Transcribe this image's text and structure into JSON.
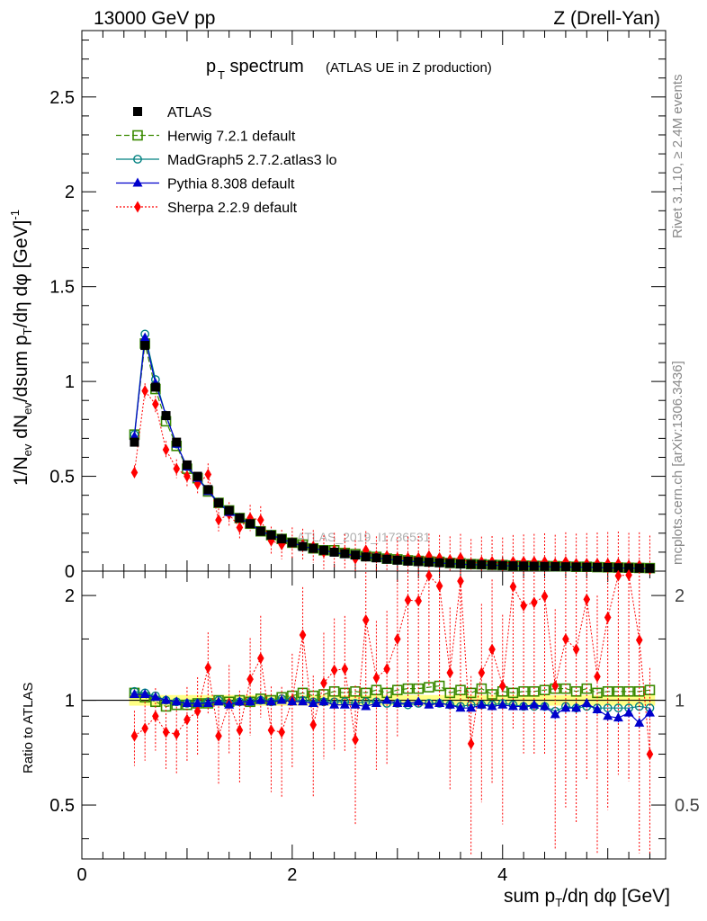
{
  "header": {
    "left": "13000 GeV pp",
    "right": "Z (Drell-Yan)"
  },
  "title": {
    "main": "p",
    "sub": "T",
    "rest": " spectrum",
    "small": "(ATLAS UE in Z production)"
  },
  "side_labels": {
    "rivet": "Rivet 3.1.10, ≥ 2.4M events",
    "mcplots": "mcplots.cern.ch [arXiv:1306.3436]"
  },
  "watermark": "ATLAS_2019_I1736531",
  "axes": {
    "ylabel_top": "1/N_ev dN_ev/dsum p_T/dη dφ [GeV]^-1",
    "ylabel_bottom": "Ratio to ATLAS",
    "xlabel": "sum p_T/dη dφ [GeV]"
  },
  "colors": {
    "atlas": "#000000",
    "herwig": "#3a8a00",
    "madgraph": "#008080",
    "pythia": "#0000cc",
    "sherpa": "#ff0000",
    "band": "#ffff66"
  },
  "chart_data": [
    {
      "type": "line",
      "panel": "main",
      "xlim": [
        0,
        5.55
      ],
      "ylim": [
        0,
        2.85
      ],
      "xticks": [
        0,
        2,
        4
      ],
      "yticks": [
        0,
        0.5,
        1,
        1.5,
        2,
        2.5
      ],
      "x": [
        0.5,
        0.6,
        0.7,
        0.8,
        0.9,
        1.0,
        1.1,
        1.2,
        1.3,
        1.4,
        1.5,
        1.6,
        1.7,
        1.8,
        1.9,
        2.0,
        2.1,
        2.2,
        2.3,
        2.4,
        2.5,
        2.6,
        2.7,
        2.8,
        2.9,
        3.0,
        3.1,
        3.2,
        3.3,
        3.4,
        3.5,
        3.6,
        3.7,
        3.8,
        3.9,
        4.0,
        4.1,
        4.2,
        4.3,
        4.4,
        4.5,
        4.6,
        4.7,
        4.8,
        4.9,
        5.0,
        5.1,
        5.2,
        5.3,
        5.4
      ],
      "series": [
        {
          "name": "ATLAS",
          "marker": "square-filled",
          "values": [
            0.68,
            1.19,
            0.97,
            0.82,
            0.68,
            0.56,
            0.5,
            0.43,
            0.36,
            0.32,
            0.28,
            0.25,
            0.21,
            0.19,
            0.17,
            0.15,
            0.13,
            0.12,
            0.11,
            0.1,
            0.092,
            0.085,
            0.075,
            0.07,
            0.063,
            0.058,
            0.053,
            0.05,
            0.047,
            0.044,
            0.041,
            0.038,
            0.036,
            0.034,
            0.032,
            0.03,
            0.028,
            0.027,
            0.026,
            0.025,
            0.024,
            0.023,
            0.022,
            0.021,
            0.02,
            0.019,
            0.018,
            0.017,
            0.016,
            0.015
          ]
        },
        {
          "name": "Herwig 7.2.1 default",
          "marker": "square-open",
          "values": [
            0.72,
            1.2,
            0.96,
            0.79,
            0.66,
            0.54,
            0.49,
            0.42,
            0.36,
            0.32,
            0.28,
            0.25,
            0.21,
            0.19,
            0.17,
            0.15,
            0.14,
            0.12,
            0.11,
            0.11,
            0.096,
            0.09,
            0.079,
            0.075,
            0.066,
            0.062,
            0.057,
            0.054,
            0.051,
            0.049,
            0.043,
            0.041,
            0.037,
            0.036,
            0.033,
            0.032,
            0.03,
            0.029,
            0.028,
            0.027,
            0.026,
            0.025,
            0.023,
            0.023,
            0.021,
            0.02,
            0.019,
            0.018,
            0.017,
            0.016
          ]
        },
        {
          "name": "MadGraph5 2.7.2.atlas3 lo",
          "marker": "circle-open",
          "values": [
            0.72,
            1.25,
            1.01,
            0.82,
            0.67,
            0.55,
            0.49,
            0.43,
            0.36,
            0.32,
            0.28,
            0.25,
            0.21,
            0.19,
            0.17,
            0.15,
            0.13,
            0.12,
            0.11,
            0.099,
            0.091,
            0.084,
            0.075,
            0.07,
            0.062,
            0.057,
            0.051,
            0.049,
            0.046,
            0.043,
            0.04,
            0.036,
            0.035,
            0.033,
            0.031,
            0.03,
            0.027,
            0.026,
            0.025,
            0.024,
            0.022,
            0.022,
            0.021,
            0.02,
            0.019,
            0.018,
            0.017,
            0.016,
            0.015,
            0.014
          ]
        },
        {
          "name": "Pythia 8.308 default",
          "marker": "triangle-filled",
          "values": [
            0.71,
            1.23,
            0.99,
            0.82,
            0.67,
            0.55,
            0.49,
            0.42,
            0.36,
            0.31,
            0.28,
            0.25,
            0.21,
            0.19,
            0.17,
            0.15,
            0.13,
            0.12,
            0.11,
            0.097,
            0.089,
            0.083,
            0.072,
            0.069,
            0.063,
            0.057,
            0.052,
            0.049,
            0.045,
            0.043,
            0.04,
            0.036,
            0.034,
            0.033,
            0.031,
            0.029,
            0.027,
            0.026,
            0.025,
            0.024,
            0.022,
            0.022,
            0.021,
            0.021,
            0.019,
            0.017,
            0.016,
            0.016,
            0.014,
            0.014
          ]
        },
        {
          "name": "Sherpa 2.2.9 default",
          "marker": "diamond-filled",
          "values": [
            0.52,
            0.95,
            0.88,
            0.64,
            0.54,
            0.5,
            0.46,
            0.51,
            0.27,
            0.3,
            0.23,
            0.28,
            0.27,
            0.16,
            0.14,
            0.15,
            0.14,
            0.13,
            0.1,
            0.11,
            0.1,
            0.065,
            0.11,
            0.08,
            0.08,
            0.07,
            0.07,
            0.07,
            0.08,
            0.07,
            0.06,
            0.07,
            0.04,
            0.05,
            0.05,
            0.04,
            0.05,
            0.05,
            0.05,
            0.05,
            0.04,
            0.05,
            0.04,
            0.04,
            0.04,
            0.04,
            0.04,
            0.03,
            0.03,
            0.01
          ]
        }
      ]
    },
    {
      "type": "line",
      "panel": "ratio",
      "xlim": [
        0,
        5.55
      ],
      "ylim": [
        0.35,
        2.35
      ],
      "yticks": [
        0.5,
        1,
        2
      ],
      "x": [
        0.5,
        0.6,
        0.7,
        0.8,
        0.9,
        1.0,
        1.1,
        1.2,
        1.3,
        1.4,
        1.5,
        1.6,
        1.7,
        1.8,
        1.9,
        2.0,
        2.1,
        2.2,
        2.3,
        2.4,
        2.5,
        2.6,
        2.7,
        2.8,
        2.9,
        3.0,
        3.1,
        3.2,
        3.3,
        3.4,
        3.5,
        3.6,
        3.7,
        3.8,
        3.9,
        4.0,
        4.1,
        4.2,
        4.3,
        4.4,
        4.5,
        4.6,
        4.7,
        4.8,
        4.9,
        5.0,
        5.1,
        5.2,
        5.3,
        5.4
      ],
      "series": [
        {
          "name": "Herwig 7.2.1 default",
          "values": [
            1.05,
            1.02,
            0.99,
            0.96,
            0.97,
            0.97,
            0.98,
            0.98,
            1.0,
            0.99,
            1.0,
            0.99,
            1.01,
            1.0,
            1.02,
            1.03,
            1.05,
            1.03,
            1.04,
            1.06,
            1.05,
            1.06,
            1.05,
            1.07,
            1.05,
            1.07,
            1.08,
            1.08,
            1.09,
            1.1,
            1.05,
            1.07,
            1.05,
            1.08,
            1.04,
            1.06,
            1.05,
            1.06,
            1.06,
            1.07,
            1.08,
            1.08,
            1.06,
            1.08,
            1.05,
            1.06,
            1.06,
            1.06,
            1.06,
            1.07
          ]
        },
        {
          "name": "MadGraph5 2.7.2.atlas3 lo",
          "values": [
            1.06,
            1.05,
            1.03,
            1.0,
            0.99,
            0.98,
            0.98,
            0.99,
            1.0,
            0.98,
            0.99,
            0.99,
            1.0,
            0.99,
            1.01,
            1.0,
            1.0,
            0.99,
            0.99,
            0.99,
            0.99,
            0.98,
            0.99,
            0.99,
            0.98,
            0.98,
            0.97,
            0.98,
            0.98,
            0.98,
            0.97,
            0.96,
            0.97,
            0.97,
            0.97,
            0.98,
            0.97,
            0.96,
            0.96,
            0.96,
            0.93,
            0.96,
            0.95,
            0.96,
            0.95,
            0.95,
            0.95,
            0.95,
            0.96,
            0.95
          ]
        },
        {
          "name": "Pythia 8.308 default",
          "values": [
            1.04,
            1.04,
            1.02,
            1.0,
            0.99,
            0.98,
            0.98,
            0.98,
            0.99,
            0.97,
            0.99,
            0.99,
            1.0,
            0.99,
            1.0,
            0.99,
            0.99,
            0.98,
            0.99,
            0.97,
            0.97,
            0.97,
            0.96,
            0.98,
            1.0,
            0.98,
            0.98,
            0.99,
            0.97,
            0.98,
            0.97,
            0.95,
            0.95,
            0.97,
            0.96,
            0.97,
            0.96,
            0.96,
            0.97,
            0.96,
            0.91,
            0.95,
            0.95,
            0.98,
            0.94,
            0.9,
            0.89,
            0.92,
            0.86,
            0.92
          ]
        },
        {
          "name": "Sherpa 2.2.9 default",
          "values": [
            0.79,
            0.83,
            0.9,
            0.81,
            0.8,
            0.88,
            0.93,
            1.24,
            0.79,
            0.98,
            0.82,
            1.15,
            1.32,
            0.82,
            0.81,
            1.0,
            1.54,
            0.85,
            1.12,
            1.22,
            1.23,
            0.77,
            1.7,
            1.16,
            1.23,
            1.5,
            1.94,
            1.93,
            2.28,
            2.13,
            1.2,
            2.2,
            0.75,
            1.2,
            1.4,
            1.1,
            2.12,
            1.87,
            1.91,
            1.99,
            1.1,
            1.5,
            1.4,
            1.95,
            1.17,
            1.73,
            2.28,
            2.29,
            1.49,
            0.7
          ]
        }
      ]
    }
  ]
}
